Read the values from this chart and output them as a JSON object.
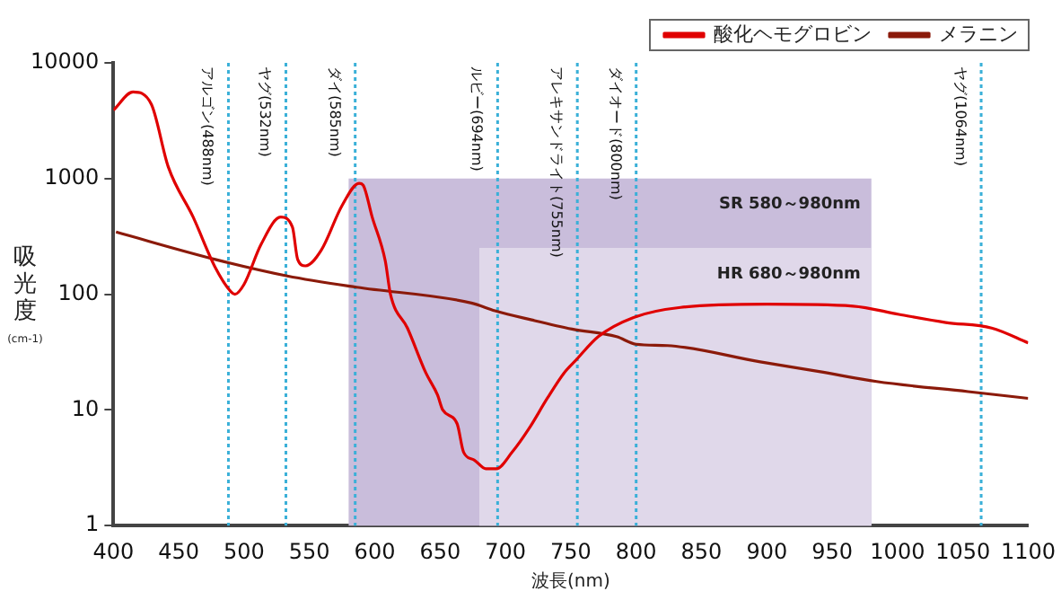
{
  "chart_data": {
    "type": "line",
    "xlabel": "波長(nm)",
    "ylabel": "吸光度(cm-1)",
    "log": "y",
    "x": [
      400,
      415,
      429,
      442,
      461,
      478,
      490,
      493,
      500,
      513,
      528,
      537,
      541,
      547,
      559,
      575,
      588,
      591,
      598,
      608,
      612,
      625,
      639,
      648,
      652,
      663,
      668,
      676,
      685,
      693,
      705,
      718,
      732,
      745,
      754,
      771,
      798,
      834,
      900,
      966,
      1001,
      1037,
      1072,
      1100
    ],
    "series": [
      {
        "name": "酸化ヘモグロビン",
        "color": "#e00000",
        "values": [
          3900,
          5600,
          4400,
          1260,
          465,
          170,
          105,
          100,
          122,
          270,
          465,
          380,
          200,
          176,
          240,
          585,
          910,
          880,
          465,
          195,
          100,
          51,
          21,
          13.5,
          10,
          7.6,
          4.3,
          3.7,
          3.1,
          3.1,
          4.3,
          6.9,
          12.6,
          21,
          27,
          43,
          63,
          77,
          82,
          79,
          67,
          57,
          51,
          38
        ]
      },
      {
        "name": "メラニン",
        "color": "#8b1a0a",
        "x": [
          402,
          478,
          533,
          586,
          674,
          692,
          720,
          751,
          785,
          800,
          824,
          895,
          940,
          984,
          1054,
          1100
        ],
        "values": [
          345,
          200,
          144,
          115,
          84,
          72,
          60,
          50,
          43,
          37,
          36,
          26,
          21.5,
          17.6,
          14.4,
          12.6
        ]
      }
    ],
    "xlim": [
      400,
      1100
    ],
    "xticks": [
      400,
      450,
      500,
      550,
      600,
      650,
      700,
      750,
      800,
      850,
      900,
      950,
      1000,
      1050,
      1100
    ],
    "ylim": [
      1,
      10000
    ],
    "yticks": [
      1,
      10,
      100,
      1000,
      10000
    ],
    "ref_lines": [
      {
        "axis": "x",
        "value": 488,
        "label": "アルゴン(488nm)",
        "color": "#3ab0d8",
        "line_style": "dotted"
      },
      {
        "axis": "x",
        "value": 532,
        "label": "ヤグ(532nm)",
        "color": "#3ab0d8",
        "line_style": "dotted"
      },
      {
        "axis": "x",
        "value": 585,
        "label": "ダイ(585nm)",
        "color": "#3ab0d8",
        "line_style": "dotted"
      },
      {
        "axis": "x",
        "value": 694,
        "label": "ルビー(694nm)",
        "color": "#3ab0d8",
        "line_style": "dotted"
      },
      {
        "axis": "x",
        "value": 755,
        "label": "アレキサンドライト(755nm)",
        "color": "#3ab0d8",
        "line_style": "dotted"
      },
      {
        "axis": "x",
        "value": 800,
        "label": "ダイオード(800nm)",
        "color": "#3ab0d8",
        "line_style": "dotted"
      },
      {
        "axis": "x",
        "value": 1064,
        "label": "ヤグ(1064nm)",
        "color": "#3ab0d8",
        "line_style": "dotted"
      }
    ],
    "bands": [
      {
        "axis": "x",
        "from": 580,
        "to": 980,
        "label": "SR 580～980nm",
        "color": "#c9bddb"
      },
      {
        "axis": "x",
        "from": 680,
        "to": 980,
        "label": "HR 680～980nm",
        "color": "#e0d8ea"
      }
    ],
    "legend": "top right",
    "grid": false,
    "marker": "none",
    "line_style": "solid"
  }
}
